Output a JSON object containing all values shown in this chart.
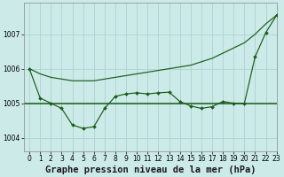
{
  "bg_color": "#cceae8",
  "grid_color": "#aad4d2",
  "line_color": "#1a5c1a",
  "title": "Graphe pression niveau de la mer (hPa)",
  "xlim": [
    -0.5,
    23
  ],
  "ylim": [
    1003.6,
    1007.9
  ],
  "yticks": [
    1004,
    1005,
    1006,
    1007
  ],
  "xticks": [
    0,
    1,
    2,
    3,
    4,
    5,
    6,
    7,
    8,
    9,
    10,
    11,
    12,
    13,
    14,
    15,
    16,
    17,
    18,
    19,
    20,
    21,
    22,
    23
  ],
  "hours": [
    0,
    1,
    2,
    3,
    4,
    5,
    6,
    7,
    8,
    9,
    10,
    11,
    12,
    13,
    14,
    15,
    16,
    17,
    18,
    19,
    20,
    21,
    22,
    23
  ],
  "line_smooth": [
    1006.0,
    1005.85,
    1005.75,
    1005.7,
    1005.65,
    1005.65,
    1005.65,
    1005.7,
    1005.75,
    1005.8,
    1005.85,
    1005.9,
    1005.95,
    1006.0,
    1006.05,
    1006.1,
    1006.2,
    1006.3,
    1006.45,
    1006.6,
    1006.75,
    1007.0,
    1007.3,
    1007.55
  ],
  "line_marker": [
    1006.0,
    1005.15,
    1005.0,
    1004.85,
    1004.37,
    1004.27,
    1004.32,
    1004.85,
    1005.2,
    1005.27,
    1005.3,
    1005.27,
    1005.3,
    1005.32,
    1005.05,
    1004.92,
    1004.85,
    1004.9,
    1005.05,
    1005.0,
    1005.0,
    1006.35,
    1007.05,
    1007.55
  ],
  "line_flat": 1005.0,
  "title_fontsize": 7.5,
  "tick_fontsize": 5.5
}
